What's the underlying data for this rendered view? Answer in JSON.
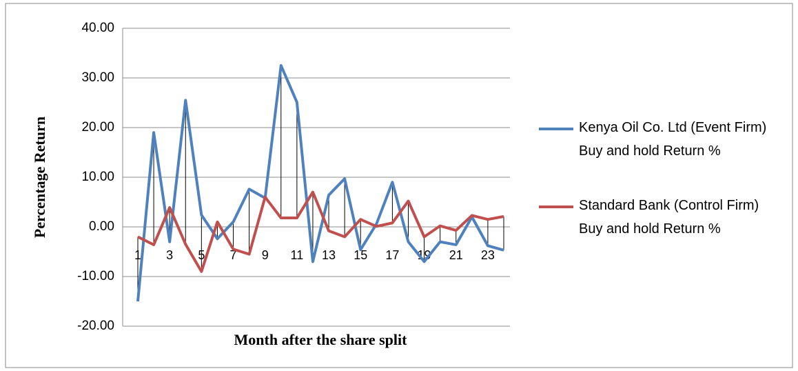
{
  "chart_data": {
    "type": "line",
    "x_label": "Month after the share split",
    "y_label": "Percentage Return",
    "categories": [
      "1",
      null,
      "3",
      null,
      "5",
      null,
      "7",
      null,
      "9",
      null,
      "11",
      null,
      "13",
      null,
      "15",
      null,
      "17",
      null,
      "19",
      null,
      "21",
      null,
      "23",
      null
    ],
    "series": [
      {
        "name": "Kenya Oil Co. Ltd (Event Firm)  Buy and hold Return %",
        "color": "#4f81bd",
        "values": [
          -15.0,
          19.0,
          -3.0,
          25.5,
          2.4,
          -2.4,
          1.0,
          7.6,
          5.8,
          32.5,
          25.1,
          -7.0,
          6.4,
          9.7,
          -4.6,
          0.6,
          9.0,
          -3.0,
          -7.0,
          -3.0,
          -3.6,
          2.0,
          -3.8,
          -4.7
        ]
      },
      {
        "name": "Standard Bank  (Control Firm)  Buy and hold Return %",
        "color": "#c0504d",
        "values": [
          -2.0,
          -3.6,
          3.9,
          -3.5,
          -9.0,
          1.0,
          -4.5,
          -5.5,
          6.0,
          1.8,
          1.8,
          7.0,
          -0.8,
          -2.0,
          1.5,
          0.1,
          0.8,
          5.2,
          -2.0,
          0.2,
          -0.7,
          2.3,
          1.5,
          2.1
        ]
      }
    ],
    "ylim": [
      -20,
      40
    ],
    "yticks": [
      {
        "value": -20,
        "label": "-20.00"
      },
      {
        "value": -10,
        "label": "-10.00"
      },
      {
        "value": 0,
        "label": "0.00"
      },
      {
        "value": 10,
        "label": "10.00"
      },
      {
        "value": 20,
        "label": "20.00"
      },
      {
        "value": 30,
        "label": "30.00"
      },
      {
        "value": 40,
        "label": "40.00"
      }
    ],
    "grid": true,
    "high_low_lines": true,
    "legend": "right"
  }
}
